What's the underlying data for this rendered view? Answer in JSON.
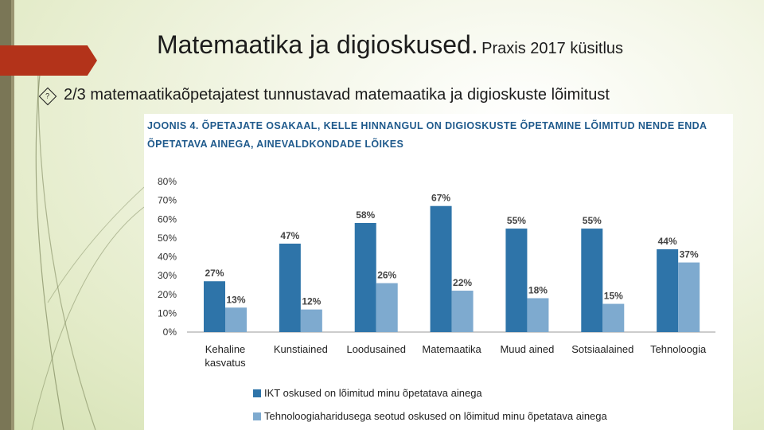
{
  "slide": {
    "title": "Matemaatika ja digioskused.",
    "title_suffix": "Praxis 2017 küsitlus",
    "bullet": "2/3 matemaatikaõpetajatest tunnustavad matemaatika ja digioskuste lõimitust"
  },
  "figure": {
    "title_line1": "JOONIS 4. ÕPETAJATE OSAKAAL, KELLE HINNANGUL ON DIGIOSKUSTE ÕPETAMINE LÕIMITUD NENDE ENDA",
    "title_line2": "ÕPETATAVA AINEGA, AINEVALDKONDADE LÕIKES"
  },
  "colors": {
    "series1": "#2e74a9",
    "series2": "#7eaacf",
    "accent": "#b3331a"
  },
  "chart_data": {
    "type": "bar",
    "categories": [
      "Kehaline kasvatus",
      "Kunstiained",
      "Loodusained",
      "Matemaatika",
      "Muud ained",
      "Sotsiaalained",
      "Tehnoloogia"
    ],
    "category_lines": [
      [
        "Kehaline",
        "kasvatus"
      ],
      [
        "Kunstiained"
      ],
      [
        "Loodusained"
      ],
      [
        "Matemaatika"
      ],
      [
        "Muud ained"
      ],
      [
        "Sotsiaalained"
      ],
      [
        "Tehnoloogia"
      ]
    ],
    "series": [
      {
        "name": "IKT oskused on lõimitud minu õpetatava ainega",
        "values": [
          27,
          47,
          58,
          67,
          55,
          55,
          44
        ]
      },
      {
        "name": "Tehnoloogiaharidusega seotud oskused on lõimitud minu õpetatava ainega",
        "values": [
          13,
          12,
          26,
          22,
          18,
          15,
          37
        ]
      }
    ],
    "yticks": [
      "0%",
      "10%",
      "20%",
      "30%",
      "40%",
      "50%",
      "60%",
      "70%",
      "80%"
    ],
    "ylim": [
      0,
      80
    ],
    "value_suffix": "%",
    "legend_position": "bottom"
  }
}
